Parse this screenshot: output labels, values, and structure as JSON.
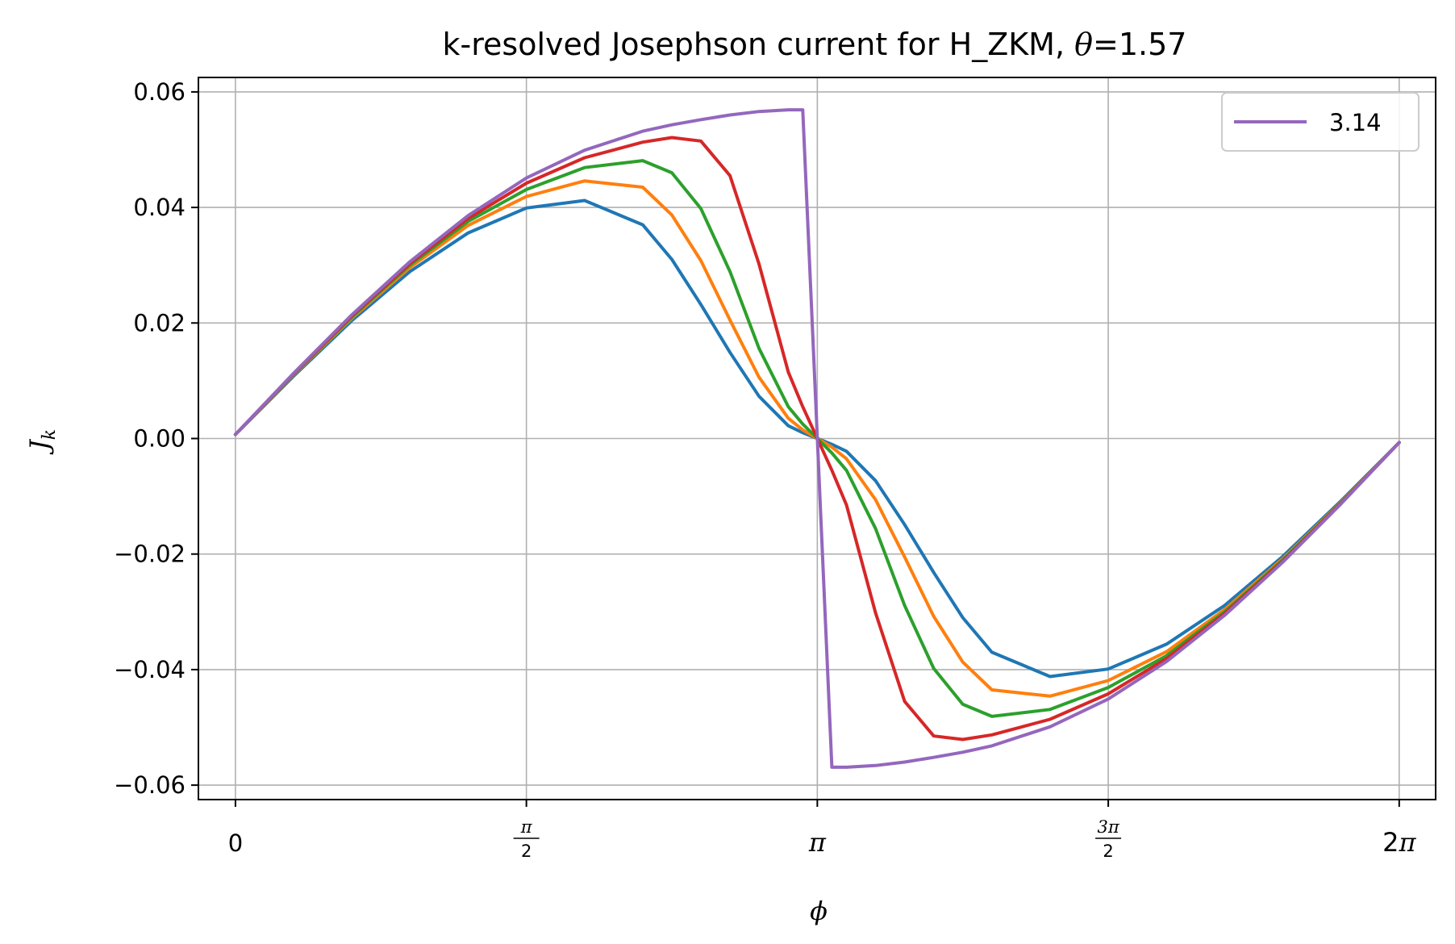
{
  "chart_data": {
    "type": "line",
    "title_main": "k-resolved Josephson current for H_ZKM, ",
    "title_symbol": "θ",
    "title_value": "=1.57",
    "xlabel": "ϕ",
    "ylabel_main": "J",
    "ylabel_sub": "k",
    "xlim": [
      -0.2,
      6.48
    ],
    "ylim": [
      -0.0625,
      0.0625
    ],
    "grid": true,
    "legend_position": "upper right",
    "x_ticks": [
      {
        "value": 0,
        "label": "0",
        "kind": "plain"
      },
      {
        "value": 1.5708,
        "num": "π",
        "den": "2",
        "kind": "frac"
      },
      {
        "value": 3.1416,
        "label": "π",
        "kind": "italic"
      },
      {
        "value": 4.7124,
        "num": "3π",
        "den": "2",
        "kind": "frac"
      },
      {
        "value": 6.2832,
        "label": "2π",
        "kind": "plain-pi"
      }
    ],
    "y_ticks": [
      {
        "value": 0.06,
        "label": "0.06"
      },
      {
        "value": 0.04,
        "label": "0.04"
      },
      {
        "value": 0.02,
        "label": "0.02"
      },
      {
        "value": 0.0,
        "label": "0.00"
      },
      {
        "value": -0.02,
        "label": "−0.02"
      },
      {
        "value": -0.04,
        "label": "−0.04"
      },
      {
        "value": -0.06,
        "label": "−0.06"
      }
    ],
    "x": [
      0.0,
      0.314,
      0.628,
      0.942,
      1.257,
      1.571,
      1.885,
      2.199,
      2.356,
      2.513,
      2.67,
      2.827,
      2.985,
      3.063,
      3.1416,
      3.22,
      3.299,
      3.456,
      3.613,
      3.77,
      3.927,
      4.084,
      4.398,
      4.712,
      5.027,
      5.341,
      5.655,
      5.969,
      6.283
    ],
    "series": [
      {
        "name": "",
        "color": "#1f77b4",
        "values": [
          0.0007,
          0.0108,
          0.0204,
          0.0289,
          0.0356,
          0.0399,
          0.0412,
          0.037,
          0.031,
          0.0232,
          0.0149,
          0.0073,
          0.0022,
          0.001,
          0.0,
          -0.001,
          -0.0022,
          -0.0073,
          -0.0149,
          -0.0232,
          -0.031,
          -0.037,
          -0.0412,
          -0.0399,
          -0.0356,
          -0.0289,
          -0.0204,
          -0.0108,
          -0.0007
        ]
      },
      {
        "name": "",
        "color": "#ff7f0e",
        "values": [
          0.0007,
          0.011,
          0.0208,
          0.0296,
          0.0369,
          0.0419,
          0.0446,
          0.0435,
          0.0387,
          0.0308,
          0.0205,
          0.0106,
          0.0035,
          0.0015,
          0.0,
          -0.0015,
          -0.0035,
          -0.0106,
          -0.0205,
          -0.0308,
          -0.0387,
          -0.0435,
          -0.0446,
          -0.0419,
          -0.0369,
          -0.0296,
          -0.0208,
          -0.011,
          -0.0007
        ]
      },
      {
        "name": "",
        "color": "#2ca02c",
        "values": [
          0.0007,
          0.0111,
          0.021,
          0.03,
          0.0376,
          0.0431,
          0.0469,
          0.0481,
          0.046,
          0.0398,
          0.0289,
          0.0156,
          0.0055,
          0.0025,
          0.0,
          -0.0025,
          -0.0055,
          -0.0156,
          -0.0289,
          -0.0398,
          -0.046,
          -0.0481,
          -0.0469,
          -0.0431,
          -0.0376,
          -0.03,
          -0.021,
          -0.0111,
          -0.0007
        ]
      },
      {
        "name": "",
        "color": "#d62728",
        "values": [
          0.0007,
          0.0112,
          0.0212,
          0.0303,
          0.0381,
          0.0442,
          0.0486,
          0.0513,
          0.0521,
          0.0515,
          0.0455,
          0.0302,
          0.0115,
          0.0055,
          0.0,
          -0.0055,
          -0.0115,
          -0.0302,
          -0.0455,
          -0.0515,
          -0.0521,
          -0.0513,
          -0.0486,
          -0.0442,
          -0.0381,
          -0.0303,
          -0.0212,
          -0.0112,
          -0.0007
        ]
      },
      {
        "name": "3.14",
        "color": "#9467bd",
        "values": [
          0.0007,
          0.0113,
          0.0214,
          0.0306,
          0.0386,
          0.0451,
          0.0499,
          0.0532,
          0.0543,
          0.0552,
          0.056,
          0.0566,
          0.0569,
          0.0569,
          0.0,
          -0.0569,
          -0.0569,
          -0.0566,
          -0.056,
          -0.0552,
          -0.0543,
          -0.0532,
          -0.0499,
          -0.0451,
          -0.0386,
          -0.0306,
          -0.0214,
          -0.0113,
          -0.0007
        ]
      }
    ]
  }
}
